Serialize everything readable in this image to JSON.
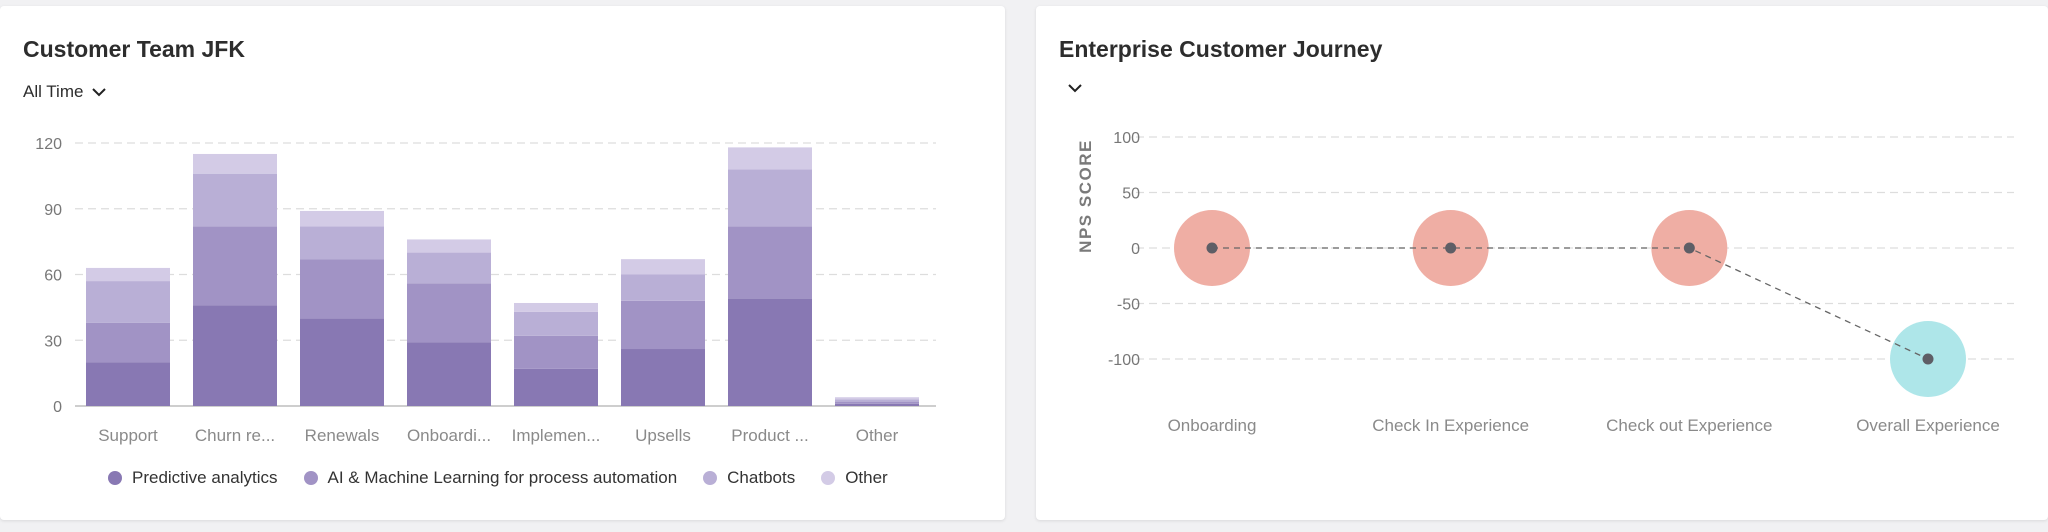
{
  "colors": {
    "predictive": "#8878b3",
    "ai_ml": "#a193c5",
    "chatbots": "#b9afd6",
    "other": "#d3cbe6",
    "negative_circle": "#efaea4",
    "positive_circle": "#aee6e9",
    "point": "#5e5e66",
    "grid": "#dddddd"
  },
  "left_card": {
    "title": "Customer Team JFK",
    "dropdown": {
      "label": "All Time",
      "icon": "chevron-down-icon"
    },
    "legend": [
      {
        "label": "Predictive analytics",
        "color": "#8878b3"
      },
      {
        "label": "AI & Machine Learning for process automation",
        "color": "#a193c5"
      },
      {
        "label": "Chatbots",
        "color": "#b9afd6"
      },
      {
        "label": "Other",
        "color": "#d3cbe6"
      }
    ]
  },
  "right_card": {
    "title": "Enterprise Customer Journey",
    "dropdown": {
      "label": "",
      "icon": "chevron-down-icon"
    }
  },
  "chart_data": [
    {
      "type": "bar",
      "stacked": true,
      "title": "Customer Team JFK",
      "categories": [
        "Support",
        "Churn re...",
        "Renewals",
        "Onboardi...",
        "Implemen...",
        "Upsells",
        "Product ...",
        "Other"
      ],
      "series": [
        {
          "name": "Predictive analytics",
          "values": [
            20,
            46,
            40,
            29,
            17,
            26,
            49,
            1
          ]
        },
        {
          "name": "AI & Machine Learning for process automation",
          "values": [
            18,
            36,
            27,
            27,
            15,
            22,
            33,
            1
          ]
        },
        {
          "name": "Chatbots",
          "values": [
            19,
            24,
            15,
            14,
            11,
            12,
            26,
            1
          ]
        },
        {
          "name": "Other",
          "values": [
            6,
            9,
            7,
            6,
            4,
            7,
            10,
            1
          ]
        }
      ],
      "ylim": [
        0,
        120
      ],
      "yticks": [
        0,
        30,
        60,
        90,
        120
      ],
      "grid": true,
      "legend_position": "bottom"
    },
    {
      "type": "scatter",
      "title": "Enterprise Customer Journey",
      "categories": [
        "Onboarding",
        "Check In Experience",
        "Check out Experience",
        "Overall Experience"
      ],
      "values": [
        0,
        0,
        0,
        -100
      ],
      "ylabel": "NPS SCORE",
      "ylim": [
        -100,
        100
      ],
      "yticks": [
        100,
        50,
        0,
        -50,
        -100
      ],
      "grid": true
    }
  ]
}
